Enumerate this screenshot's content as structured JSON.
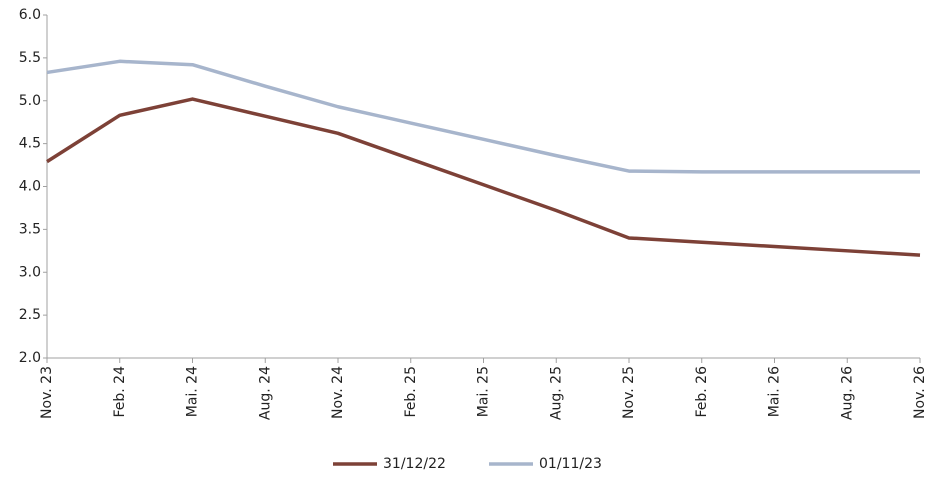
{
  "chart_data": {
    "type": "line",
    "categories": [
      "Nov. 23",
      "Feb. 24",
      "Mai. 24",
      "Aug. 24",
      "Nov. 24",
      "Feb. 25",
      "Mai. 25",
      "Aug. 25",
      "Nov. 25",
      "Feb. 26",
      "Mai. 26",
      "Aug. 26",
      "Nov. 26"
    ],
    "series": [
      {
        "name": "31/12/22",
        "color": "#7d4137",
        "values": [
          4.29,
          4.83,
          5.02,
          4.82,
          4.62,
          4.32,
          4.02,
          3.72,
          3.4,
          3.35,
          3.3,
          3.25,
          3.2
        ]
      },
      {
        "name": "01/11/23",
        "color": "#a7b5cc",
        "values": [
          5.33,
          5.46,
          5.42,
          5.17,
          4.93,
          4.74,
          4.55,
          4.36,
          4.18,
          4.17,
          4.17,
          4.17,
          4.17
        ]
      }
    ],
    "ylim": [
      2,
      6
    ],
    "yticks": [
      {
        "value": 2,
        "label": "2.0"
      },
      2.5,
      {
        "value": 3,
        "label": "3.0"
      },
      3.5,
      {
        "value": 4,
        "label": "4.0"
      },
      4.5,
      {
        "value": 5,
        "label": "5.0"
      },
      5.5,
      {
        "value": 6,
        "label": "6.0"
      }
    ],
    "grid": false,
    "legend": "bottom"
  }
}
